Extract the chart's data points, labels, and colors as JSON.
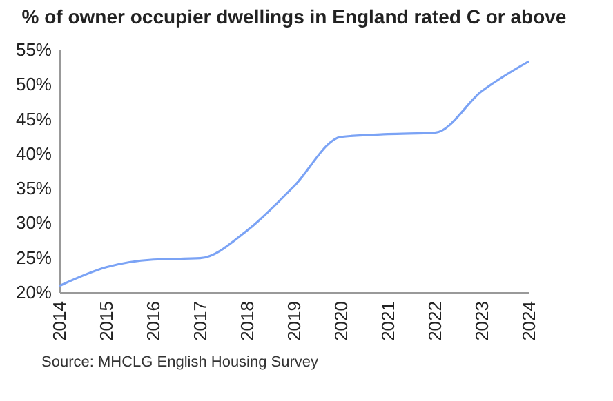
{
  "chart_data": {
    "type": "line",
    "title": "% of owner occupier dwellings in England rated C or above",
    "categories": [
      "2014",
      "2015",
      "2016",
      "2017",
      "2018",
      "2019",
      "2020",
      "2021",
      "2022",
      "2023",
      "2024"
    ],
    "series": [
      {
        "color": "#7ba3f5",
        "values": [
          20.9,
          23.6,
          24.7,
          24.9,
          28.9,
          35.3,
          42.4,
          42.8,
          43.0,
          49.0,
          53.3
        ]
      }
    ],
    "ylim": [
      20,
      55
    ],
    "yticks": [
      {
        "value": 20,
        "label": "20%"
      },
      {
        "value": 25,
        "label": "25%"
      },
      {
        "value": 30,
        "label": "30%"
      },
      {
        "value": 35,
        "label": "35%"
      },
      {
        "value": 40,
        "label": "40%"
      },
      {
        "value": 45,
        "label": "45%"
      },
      {
        "value": 50,
        "label": "50%"
      },
      {
        "value": 55,
        "label": "55%"
      }
    ],
    "grid": false,
    "legend": false,
    "marker": "none",
    "line_style": "solid",
    "annotations": [
      "Source: MHCLG English Housing Survey"
    ]
  }
}
